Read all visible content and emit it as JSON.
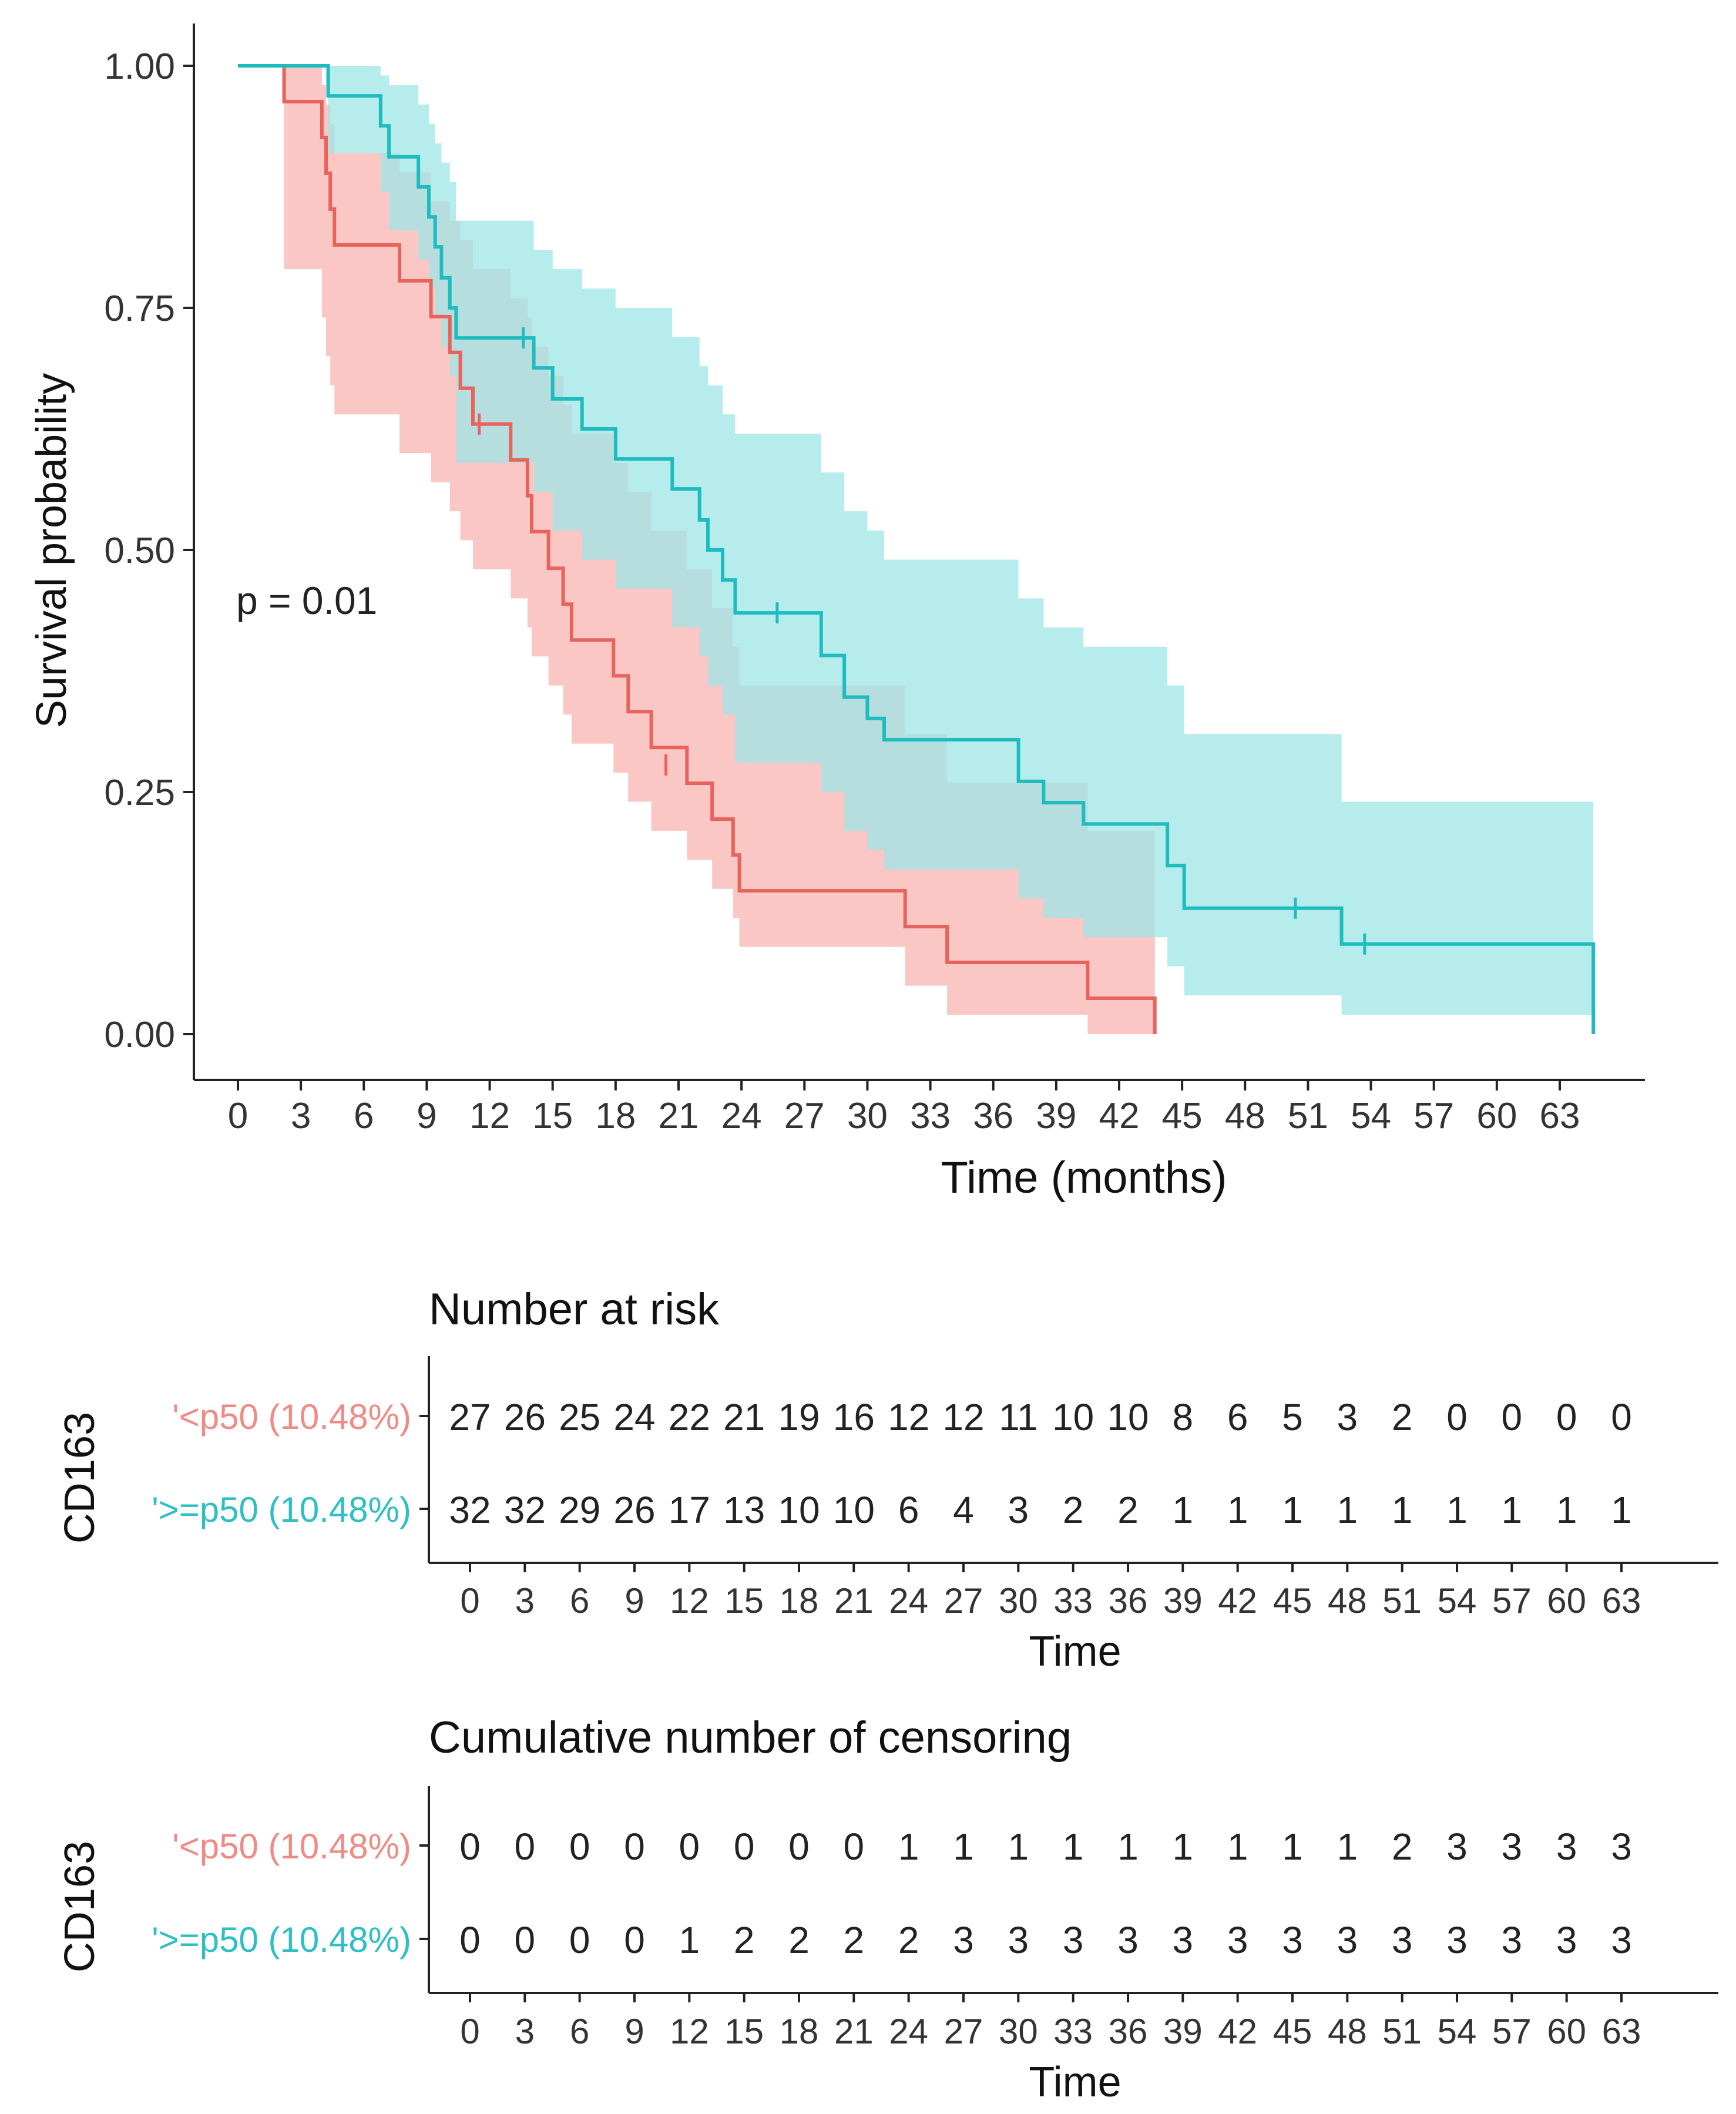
{
  "chart_data": [
    {
      "type": "line",
      "subtype": "kaplan-meier-step",
      "ylabel": "Survival probability",
      "xlabel": "Time (months)",
      "xlim": [
        -1,
        67
      ],
      "ylim": [
        -0.05,
        1.05
      ],
      "xticks": [
        0,
        3,
        6,
        9,
        12,
        15,
        18,
        21,
        24,
        27,
        30,
        33,
        36,
        39,
        42,
        45,
        48,
        51,
        54,
        57,
        60,
        63
      ],
      "yticks": [
        0.0,
        0.25,
        0.5,
        0.75,
        1.0
      ],
      "ytick_labels": [
        "0.00",
        "0.25",
        "0.50",
        "0.75",
        "1.00"
      ],
      "annotation": "p = 0.01",
      "legend": "none",
      "series": [
        {
          "name": "'<p50 (10.48%)",
          "color": "#e8635c",
          "band_color": "#f8b4b0",
          "steps": [
            [
              0,
              1.0
            ],
            [
              2.2,
              0.963
            ],
            [
              4,
              0.926
            ],
            [
              4.2,
              0.889
            ],
            [
              4.4,
              0.852
            ],
            [
              4.6,
              0.815
            ],
            [
              7.7,
              0.778
            ],
            [
              9.2,
              0.741
            ],
            [
              10.1,
              0.704
            ],
            [
              10.6,
              0.667
            ],
            [
              11.2,
              0.63
            ],
            [
              13,
              0.593
            ],
            [
              13.8,
              0.556
            ],
            [
              14,
              0.519
            ],
            [
              14.8,
              0.481
            ],
            [
              15.5,
              0.444
            ],
            [
              15.9,
              0.407
            ],
            [
              17.9,
              0.37
            ],
            [
              18.6,
              0.333
            ],
            [
              19.7,
              0.296
            ],
            [
              21.4,
              0.259
            ],
            [
              22.6,
              0.222
            ],
            [
              23.6,
              0.185
            ],
            [
              23.9,
              0.148
            ],
            [
              31.8,
              0.111
            ],
            [
              33.8,
              0.074
            ],
            [
              40.5,
              0.037
            ],
            [
              43.7,
              0.0
            ]
          ],
          "ci": [
            [
              0,
              1.0,
              1.0
            ],
            [
              2.2,
              1.0,
              0.79
            ],
            [
              4,
              0.98,
              0.74
            ],
            [
              4.2,
              0.96,
              0.7
            ],
            [
              4.4,
              0.94,
              0.67
            ],
            [
              4.6,
              0.91,
              0.64
            ],
            [
              7.7,
              0.89,
              0.6
            ],
            [
              9.2,
              0.86,
              0.57
            ],
            [
              10.1,
              0.84,
              0.54
            ],
            [
              10.6,
              0.82,
              0.51
            ],
            [
              11.2,
              0.79,
              0.48
            ],
            [
              13,
              0.76,
              0.45
            ],
            [
              13.8,
              0.74,
              0.42
            ],
            [
              14,
              0.71,
              0.39
            ],
            [
              14.8,
              0.68,
              0.36
            ],
            [
              15.5,
              0.65,
              0.33
            ],
            [
              15.9,
              0.62,
              0.3
            ],
            [
              17.9,
              0.59,
              0.27
            ],
            [
              18.6,
              0.56,
              0.24
            ],
            [
              19.7,
              0.52,
              0.21
            ],
            [
              21.4,
              0.48,
              0.18
            ],
            [
              22.6,
              0.44,
              0.15
            ],
            [
              23.6,
              0.4,
              0.12
            ],
            [
              23.9,
              0.36,
              0.09
            ],
            [
              31.8,
              0.31,
              0.05
            ],
            [
              33.8,
              0.26,
              0.02
            ],
            [
              40.5,
              0.21,
              0.0
            ],
            [
              43.7,
              0.19,
              0.0
            ]
          ],
          "censor_marks": [
            [
              11.5,
              0.63
            ],
            [
              20.4,
              0.278
            ]
          ]
        },
        {
          "name": "'>=p50 (10.48%)",
          "color": "#1fbcbf",
          "band_color": "#9fe5e7",
          "steps": [
            [
              0,
              1.0
            ],
            [
              4.3,
              0.969
            ],
            [
              6.8,
              0.938
            ],
            [
              7.2,
              0.906
            ],
            [
              8.6,
              0.875
            ],
            [
              9.1,
              0.844
            ],
            [
              9.4,
              0.813
            ],
            [
              9.7,
              0.781
            ],
            [
              10.1,
              0.75
            ],
            [
              10.4,
              0.719
            ],
            [
              14.1,
              0.688
            ],
            [
              15,
              0.656
            ],
            [
              16.4,
              0.625
            ],
            [
              18,
              0.594
            ],
            [
              20.7,
              0.563
            ],
            [
              22,
              0.531
            ],
            [
              22.4,
              0.5
            ],
            [
              23.1,
              0.469
            ],
            [
              23.7,
              0.435
            ],
            [
              27.8,
              0.391
            ],
            [
              28.9,
              0.348
            ],
            [
              30,
              0.326
            ],
            [
              30.8,
              0.304
            ],
            [
              37.2,
              0.261
            ],
            [
              38.4,
              0.239
            ],
            [
              40.3,
              0.217
            ],
            [
              44.3,
              0.174
            ],
            [
              45.1,
              0.13
            ],
            [
              52.6,
              0.093
            ],
            [
              64.6,
              0.0
            ]
          ],
          "ci": [
            [
              0,
              1.0,
              1.0
            ],
            [
              4.3,
              1.0,
              0.91
            ],
            [
              6.8,
              0.99,
              0.87
            ],
            [
              7.2,
              0.98,
              0.83
            ],
            [
              8.6,
              0.96,
              0.8
            ],
            [
              9.1,
              0.94,
              0.77
            ],
            [
              9.4,
              0.92,
              0.74
            ],
            [
              9.7,
              0.9,
              0.71
            ],
            [
              10.1,
              0.88,
              0.68
            ],
            [
              10.4,
              0.84,
              0.59
            ],
            [
              14.1,
              0.81,
              0.56
            ],
            [
              15,
              0.79,
              0.52
            ],
            [
              16.4,
              0.77,
              0.49
            ],
            [
              18,
              0.75,
              0.46
            ],
            [
              20.7,
              0.72,
              0.42
            ],
            [
              22,
              0.69,
              0.39
            ],
            [
              22.4,
              0.67,
              0.36
            ],
            [
              23.1,
              0.64,
              0.33
            ],
            [
              23.7,
              0.62,
              0.28
            ],
            [
              27.8,
              0.58,
              0.25
            ],
            [
              28.9,
              0.54,
              0.21
            ],
            [
              30,
              0.52,
              0.19
            ],
            [
              30.8,
              0.49,
              0.17
            ],
            [
              37.2,
              0.45,
              0.14
            ],
            [
              38.4,
              0.42,
              0.12
            ],
            [
              40.3,
              0.4,
              0.1
            ],
            [
              44.3,
              0.36,
              0.07
            ],
            [
              45.1,
              0.31,
              0.04
            ],
            [
              52.6,
              0.24,
              0.02
            ],
            [
              64.6,
              0.24,
              0.0
            ]
          ],
          "censor_marks": [
            [
              13.6,
              0.719
            ],
            [
              25.7,
              0.435
            ],
            [
              50.4,
              0.13
            ],
            [
              53.7,
              0.093
            ]
          ]
        }
      ]
    },
    {
      "type": "table",
      "title": "Number at risk",
      "ylabel": "CD163",
      "xlabel": "Time",
      "columns": [
        0,
        3,
        6,
        9,
        12,
        15,
        18,
        21,
        24,
        27,
        30,
        33,
        36,
        39,
        42,
        45,
        48,
        51,
        54,
        57,
        60,
        63
      ],
      "rows": [
        {
          "label": "'<p50 (10.48%)",
          "color": "#f08a84",
          "values": [
            27,
            26,
            25,
            24,
            22,
            21,
            19,
            16,
            12,
            12,
            11,
            10,
            10,
            8,
            6,
            5,
            3,
            2,
            0,
            0,
            0,
            0
          ]
        },
        {
          "label": "'>=p50 (10.48%)",
          "color": "#2dbfc3",
          "values": [
            32,
            32,
            29,
            26,
            17,
            13,
            10,
            10,
            6,
            4,
            3,
            2,
            2,
            1,
            1,
            1,
            1,
            1,
            1,
            1,
            1,
            1
          ]
        }
      ]
    },
    {
      "type": "table",
      "title": "Cumulative number of censoring",
      "ylabel": "CD163",
      "xlabel": "Time",
      "columns": [
        0,
        3,
        6,
        9,
        12,
        15,
        18,
        21,
        24,
        27,
        30,
        33,
        36,
        39,
        42,
        45,
        48,
        51,
        54,
        57,
        60,
        63
      ],
      "rows": [
        {
          "label": "'<p50 (10.48%)",
          "color": "#f08a84",
          "values": [
            0,
            0,
            0,
            0,
            0,
            0,
            0,
            0,
            1,
            1,
            1,
            1,
            1,
            1,
            1,
            1,
            1,
            2,
            3,
            3,
            3,
            3
          ]
        },
        {
          "label": "'>=p50 (10.48%)",
          "color": "#2dbfc3",
          "values": [
            0,
            0,
            0,
            0,
            1,
            2,
            2,
            2,
            2,
            3,
            3,
            3,
            3,
            3,
            3,
            3,
            3,
            3,
            3,
            3,
            3,
            3
          ]
        }
      ]
    }
  ]
}
